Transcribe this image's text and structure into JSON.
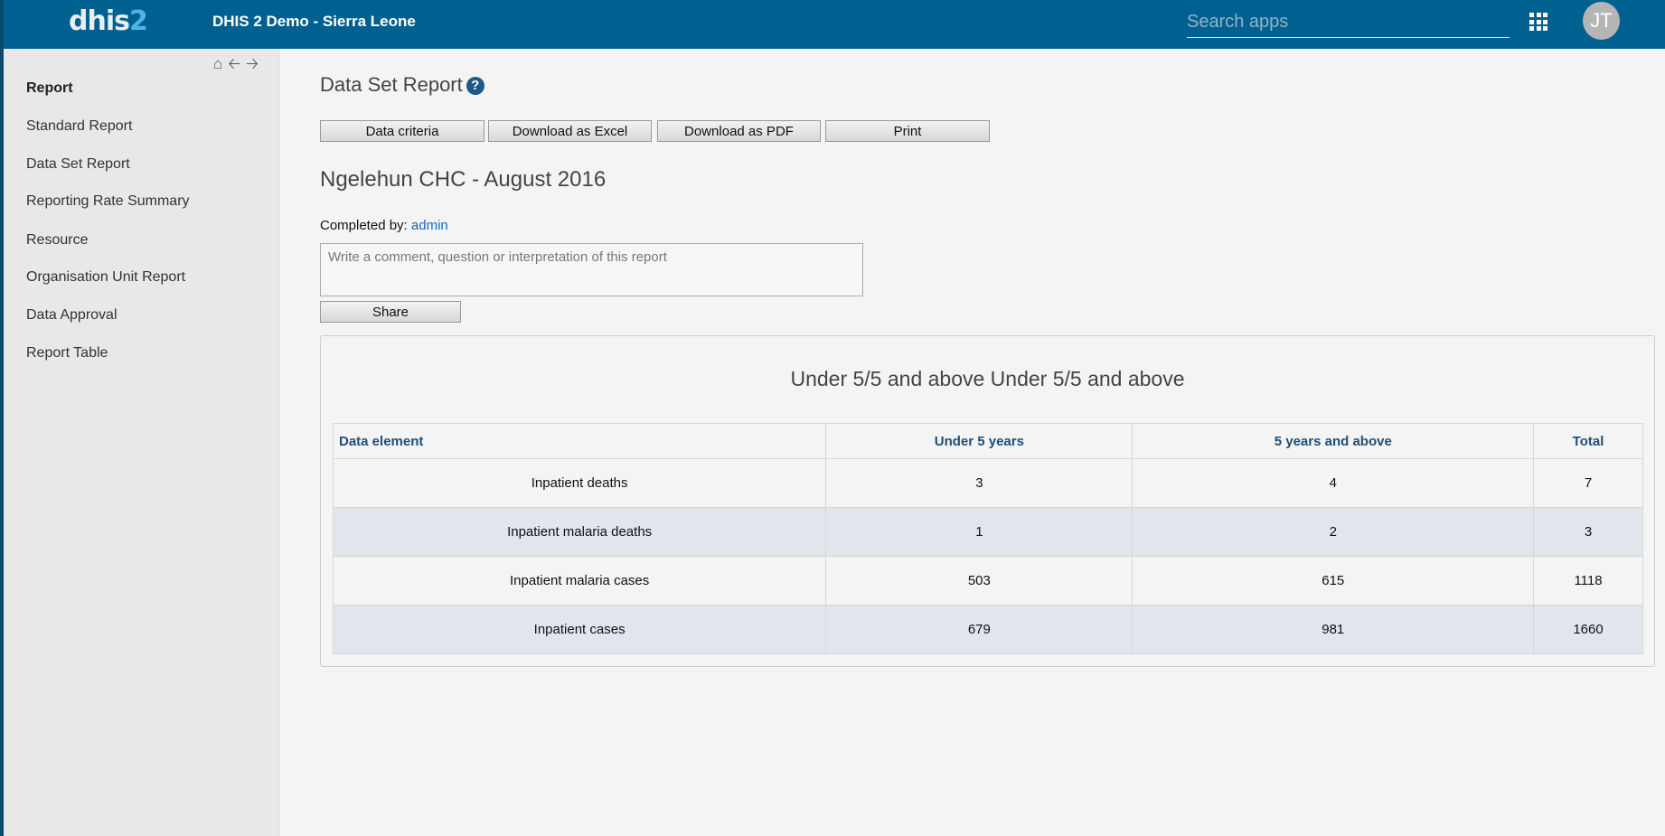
{
  "header": {
    "logo_text": "dhis",
    "logo_accent": "2",
    "title": "DHIS 2 Demo - Sierra Leone",
    "search_placeholder": "Search apps",
    "avatar_initials": "JT",
    "brand_color": "#00608f"
  },
  "sidebar": {
    "nav_icons": [
      "home-icon",
      "arrow-left-icon",
      "arrow-right-icon"
    ],
    "items": [
      {
        "label": "Report"
      },
      {
        "label": "Standard Report"
      },
      {
        "label": "Data Set Report"
      },
      {
        "label": "Reporting Rate Summary"
      },
      {
        "label": "Resource"
      },
      {
        "label": "Organisation Unit Report"
      },
      {
        "label": "Data Approval"
      },
      {
        "label": "Report Table"
      }
    ]
  },
  "main": {
    "title": "Data Set Report",
    "help_glyph": "?",
    "buttons": {
      "data_criteria": "Data criteria",
      "excel": "Download as Excel",
      "pdf": "Download as PDF",
      "print": "Print"
    },
    "report_heading": "Ngelehun CHC - August 2016",
    "completed_label": "Completed by:",
    "completed_user": "admin",
    "comment_placeholder": "Write a comment, question or interpretation of this report",
    "share_label": "Share",
    "panel_title": "Under 5/5 and above Under 5/5 and above",
    "table": {
      "headers": [
        "Data element",
        "Under 5 years",
        "5 years and above",
        "Total"
      ],
      "rows": [
        [
          "Inpatient deaths",
          "3",
          "4",
          "7"
        ],
        [
          "Inpatient malaria deaths",
          "1",
          "2",
          "3"
        ],
        [
          "Inpatient malaria cases",
          "503",
          "615",
          "1118"
        ],
        [
          "Inpatient cases",
          "679",
          "981",
          "1660"
        ]
      ]
    }
  }
}
